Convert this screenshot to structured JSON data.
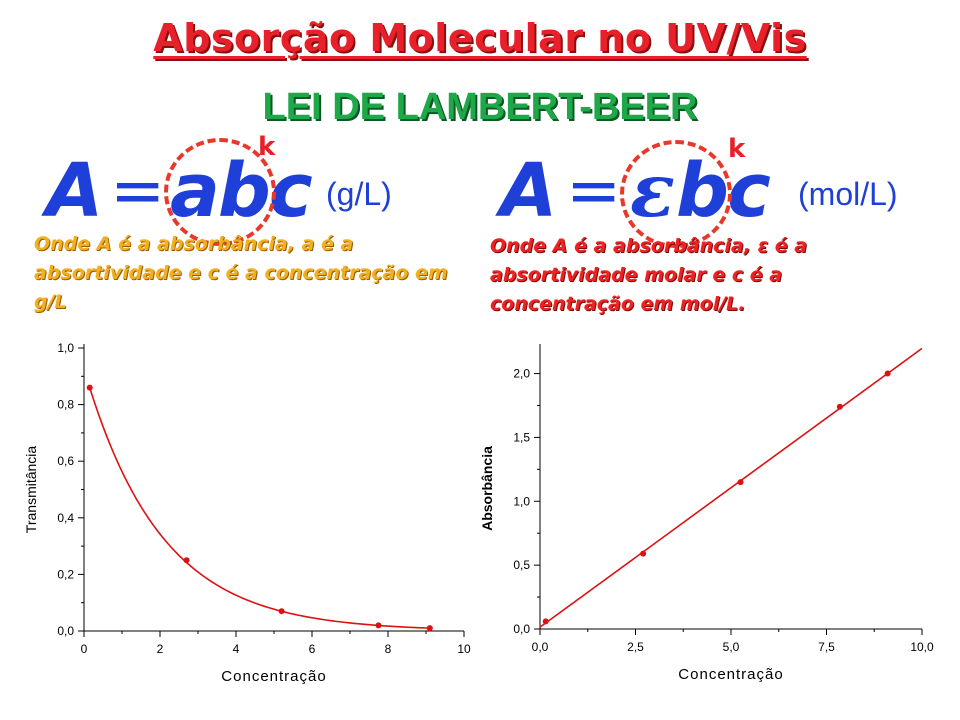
{
  "slide": {
    "title": "Absorção Molecular  no UV/Vis",
    "subtitle": "LEI DE LAMBERT-BEER",
    "left": {
      "formula_lhs": "A",
      "formula_eq": "=",
      "formula_rhs": "abc",
      "k_label": "k",
      "unit": "(g/L)",
      "description": "Onde A é a absorbância, a é a absortividade e c é a concentração em g/L"
    },
    "right": {
      "formula_lhs": "A",
      "formula_eq": "=",
      "formula_epsilon": "ε",
      "formula_rhs": "bc",
      "k_label": "k",
      "unit": "(mol/L)",
      "description": "Onde A é a absorbância, ε é a absortividade molar e c é a concentração em mol/L."
    },
    "colors": {
      "title_red": "#e8202a",
      "subtitle_green": "#1fa84a",
      "formula_blue": "#1e3fd8",
      "left_desc_orange": "#f0b020",
      "right_desc_red": "#ee2222",
      "curve_red": "#dd1111"
    }
  },
  "chart_data": [
    {
      "type": "line",
      "xlabel": "Concentração",
      "ylabel": "Transmitância",
      "xlim": [
        0,
        10
      ],
      "ylim": [
        0,
        1.0
      ],
      "xticks": [
        0,
        2,
        4,
        6,
        8,
        10
      ],
      "xtick_labels": [
        "0",
        "2",
        "4",
        "6",
        "8",
        "10"
      ],
      "yticks": [
        0,
        0.2,
        0.4,
        0.6,
        0.8,
        1.0
      ],
      "ytick_labels": [
        "0,0",
        "0,2",
        "0,4",
        "0,6",
        "0,8",
        "1,0"
      ],
      "points": {
        "x": [
          0.15,
          2.7,
          5.2,
          7.75,
          9.1
        ],
        "y": [
          0.86,
          0.25,
          0.07,
          0.02,
          0.01
        ]
      },
      "curve": "exponential decay",
      "grid": false
    },
    {
      "type": "line",
      "xlabel": "Concentração",
      "ylabel": "Absorbância",
      "xlim": [
        0,
        10.0
      ],
      "ylim": [
        0,
        2.2
      ],
      "xticks": [
        0,
        2.5,
        5.0,
        7.5,
        10.0
      ],
      "xtick_labels": [
        "0,0",
        "2,5",
        "5,0",
        "7,5",
        "10,0"
      ],
      "yticks": [
        0,
        0.5,
        1.0,
        1.5,
        2.0
      ],
      "ytick_labels": [
        "0,0",
        "0,5",
        "1,0",
        "1,5",
        "2,0"
      ],
      "points": {
        "x": [
          0.15,
          2.7,
          5.25,
          7.85,
          9.1
        ],
        "y": [
          0.06,
          0.59,
          1.15,
          1.74,
          2.0
        ]
      },
      "curve": "linear",
      "grid": false
    }
  ]
}
